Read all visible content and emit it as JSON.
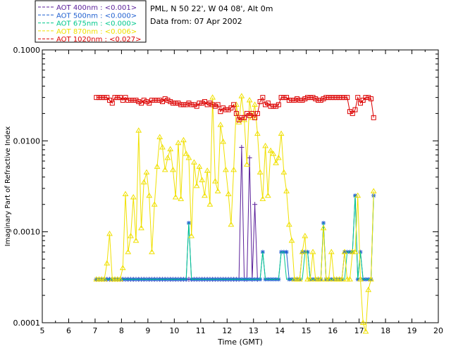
{
  "chart_data": {
    "type": "line",
    "title": "",
    "info_lines": [
      "PML, N 50 22', W 04 08', Alt 0m",
      "Data from: 07 Apr 2002"
    ],
    "xlabel": "Time (GMT)",
    "ylabel": "Imaginary Part of Refractive Index",
    "xlim": [
      5,
      20
    ],
    "ylim": [
      0.0001,
      0.1
    ],
    "yscale": "log",
    "x_ticks": [
      "5",
      "6",
      "7",
      "8",
      "9",
      "10",
      "11",
      "12",
      "13",
      "14",
      "15",
      "16",
      "17",
      "18",
      "19",
      "20"
    ],
    "y_ticks": [
      "0.0001",
      "0.0010",
      "0.0100",
      "0.1000"
    ],
    "legend_position": "top-left",
    "series": [
      {
        "name": "AOT  400nm : <0.001>",
        "color": "#5a1f9a",
        "marker": "plus",
        "x": [
          7.05,
          7.15,
          7.25,
          7.35,
          7.45,
          7.55,
          7.65,
          7.75,
          7.85,
          7.95,
          8.05,
          8.15,
          8.25,
          8.35,
          8.45,
          8.55,
          8.65,
          8.75,
          8.85,
          8.95,
          9.05,
          9.15,
          9.25,
          9.35,
          9.45,
          9.55,
          9.65,
          9.75,
          9.85,
          9.95,
          10.05,
          10.15,
          10.25,
          10.35,
          10.45,
          10.55,
          10.65,
          10.75,
          10.85,
          10.95,
          11.05,
          11.15,
          11.25,
          11.35,
          11.45,
          11.55,
          11.65,
          11.75,
          11.85,
          11.95,
          12.05,
          12.15,
          12.25,
          12.35,
          12.45,
          12.55,
          12.65,
          12.75,
          12.85,
          12.95,
          13.05,
          13.15
        ],
        "y": [
          0.0003,
          0.0003,
          0.0003,
          0.0003,
          0.0003,
          0.0003,
          0.0003,
          0.0003,
          0.0003,
          0.0003,
          0.0003,
          0.0003,
          0.0003,
          0.0003,
          0.0003,
          0.0003,
          0.0003,
          0.0003,
          0.0003,
          0.0003,
          0.0003,
          0.0003,
          0.0003,
          0.0003,
          0.0003,
          0.0003,
          0.0003,
          0.0003,
          0.0003,
          0.0003,
          0.0003,
          0.0003,
          0.0003,
          0.0003,
          0.0003,
          0.0003,
          0.0003,
          0.0003,
          0.0003,
          0.0003,
          0.0003,
          0.0003,
          0.0003,
          0.0003,
          0.0003,
          0.0003,
          0.0003,
          0.0003,
          0.0003,
          0.0003,
          0.0003,
          0.0003,
          0.0003,
          0.0003,
          0.0003,
          0.0085,
          0.0003,
          0.0003,
          0.0065,
          0.0003,
          0.002,
          0.0003
        ]
      },
      {
        "name": "AOT  500nm : <0.000>",
        "color": "#1f5fd0",
        "marker": "asterisk",
        "x": [
          7.05,
          7.15,
          7.25,
          7.35,
          7.45,
          7.55,
          7.65,
          7.75,
          7.85,
          7.95,
          8.05,
          8.15,
          8.25,
          8.35,
          8.45,
          8.55,
          8.65,
          8.75,
          8.85,
          8.95,
          9.05,
          9.15,
          9.25,
          9.35,
          9.45,
          9.55,
          9.65,
          9.75,
          9.85,
          9.95,
          10.05,
          10.15,
          10.25,
          10.35,
          10.45,
          10.55,
          10.65,
          10.75,
          10.85,
          10.95,
          11.05,
          11.15,
          11.25,
          11.35,
          11.45,
          11.55,
          11.65,
          11.75,
          11.85,
          11.95,
          12.05,
          12.15,
          12.25,
          12.35,
          12.45,
          12.55,
          12.65,
          12.75,
          12.85,
          12.95,
          13.05,
          13.15,
          13.25,
          13.35,
          13.45,
          13.55,
          13.65,
          13.75,
          13.85,
          13.95,
          14.05,
          14.15,
          14.25,
          14.35,
          14.45,
          14.55,
          14.65,
          14.75,
          14.85,
          14.95,
          15.05,
          15.15,
          15.25,
          15.35,
          15.45,
          15.55,
          15.65,
          15.75,
          15.85,
          15.95,
          16.05,
          16.15,
          16.25,
          16.35,
          16.45,
          16.55,
          16.65,
          16.75,
          16.85,
          16.95,
          17.05,
          17.15,
          17.25,
          17.35,
          17.45,
          17.55
        ],
        "y": [
          0.0003,
          0.0003,
          0.0003,
          0.0003,
          0.0003,
          0.0003,
          0.0003,
          0.0003,
          0.0003,
          0.0003,
          0.0003,
          0.0003,
          0.0003,
          0.0003,
          0.0003,
          0.0003,
          0.0003,
          0.0003,
          0.0003,
          0.0003,
          0.0003,
          0.0003,
          0.0003,
          0.0003,
          0.0003,
          0.0003,
          0.0003,
          0.0003,
          0.0003,
          0.0003,
          0.0003,
          0.0003,
          0.0003,
          0.0003,
          0.0003,
          0.00125,
          0.0003,
          0.0003,
          0.0003,
          0.0003,
          0.0003,
          0.0003,
          0.0003,
          0.0003,
          0.0003,
          0.0003,
          0.0003,
          0.0003,
          0.0003,
          0.0003,
          0.0003,
          0.0003,
          0.0003,
          0.0003,
          0.0003,
          0.0003,
          0.0003,
          0.0003,
          0.0003,
          0.0003,
          0.0003,
          0.0003,
          0.0003,
          0.0006,
          0.0003,
          0.0003,
          0.0003,
          0.0003,
          0.0003,
          0.0003,
          0.0006,
          0.0006,
          0.0006,
          0.0003,
          0.0003,
          0.0003,
          0.0003,
          0.0003,
          0.0006,
          0.0006,
          0.0006,
          0.0003,
          0.0003,
          0.0003,
          0.0003,
          0.0003,
          0.00125,
          0.0003,
          0.0003,
          0.0003,
          0.0003,
          0.0003,
          0.0003,
          0.0003,
          0.0006,
          0.0006,
          0.0006,
          0.0006,
          0.0025,
          0.0003,
          0.0006,
          0.0003,
          0.0003,
          0.0003,
          0.0003,
          0.0025
        ]
      },
      {
        "name": "AOT  675nm : <0.000>",
        "color": "#00c88c",
        "marker": "none",
        "x": [
          7.05,
          10.45,
          10.55,
          10.65,
          13.25,
          13.35,
          13.45,
          13.95,
          14.05,
          14.15,
          14.25,
          14.85,
          14.95,
          15.05,
          15.15,
          15.55,
          15.65,
          15.75,
          16.45,
          16.55,
          16.65,
          16.75,
          16.85,
          16.95,
          17.05,
          17.15,
          17.25,
          17.35,
          17.45,
          17.55
        ],
        "y": [
          0.0003,
          0.0003,
          0.00125,
          0.0003,
          0.0003,
          0.0006,
          0.0003,
          0.0003,
          0.0006,
          0.0006,
          0.0003,
          0.0003,
          0.0006,
          0.0006,
          0.0003,
          0.0003,
          0.00125,
          0.0003,
          0.0003,
          0.0006,
          0.0006,
          0.0006,
          0.0025,
          0.0003,
          0.0006,
          0.0003,
          0.0003,
          0.0003,
          0.0003,
          0.0025
        ]
      },
      {
        "name": "AOT  870nm : <0.006>",
        "color": "#f0e000",
        "marker": "triangle",
        "x": [
          7.05,
          7.15,
          7.25,
          7.35,
          7.45,
          7.55,
          7.65,
          7.75,
          7.85,
          7.95,
          8.05,
          8.15,
          8.25,
          8.35,
          8.45,
          8.55,
          8.65,
          8.75,
          8.85,
          8.95,
          9.05,
          9.15,
          9.25,
          9.35,
          9.45,
          9.55,
          9.65,
          9.75,
          9.85,
          9.95,
          10.05,
          10.15,
          10.25,
          10.35,
          10.45,
          10.55,
          10.65,
          10.75,
          10.85,
          10.95,
          11.05,
          11.15,
          11.25,
          11.35,
          11.45,
          11.55,
          11.65,
          11.75,
          11.85,
          11.95,
          12.05,
          12.15,
          12.25,
          12.35,
          12.45,
          12.55,
          12.65,
          12.75,
          12.85,
          12.95,
          13.05,
          13.15,
          13.25,
          13.35,
          13.45,
          13.55,
          13.65,
          13.75,
          13.85,
          13.95,
          14.05,
          14.15,
          14.25,
          14.35,
          14.45,
          14.55,
          14.65,
          14.75,
          14.85,
          14.95,
          15.05,
          15.15,
          15.25,
          15.35,
          15.45,
          15.55,
          15.65,
          15.75,
          15.85,
          15.95,
          16.05,
          16.15,
          16.25,
          16.35,
          16.45,
          16.55,
          16.65,
          16.75,
          16.85,
          16.95,
          17.05,
          17.15,
          17.25,
          17.35,
          17.45,
          17.55
        ],
        "y": [
          0.0003,
          0.0003,
          0.0003,
          0.0003,
          0.00045,
          0.00095,
          0.0003,
          0.0003,
          0.0003,
          0.0003,
          0.0004,
          0.0026,
          0.0006,
          0.0009,
          0.0024,
          0.0008,
          0.013,
          0.0011,
          0.0035,
          0.0045,
          0.0025,
          0.0006,
          0.002,
          0.0052,
          0.011,
          0.0085,
          0.0048,
          0.0065,
          0.0081,
          0.0048,
          0.0024,
          0.0095,
          0.0023,
          0.0102,
          0.0072,
          0.0065,
          0.0009,
          0.0058,
          0.0032,
          0.0052,
          0.0037,
          0.0025,
          0.0047,
          0.002,
          0.03,
          0.0036,
          0.0028,
          0.015,
          0.0098,
          0.0048,
          0.0026,
          0.0012,
          0.0048,
          0.025,
          0.016,
          0.031,
          0.017,
          0.0055,
          0.028,
          0.018,
          0.025,
          0.012,
          0.0045,
          0.0023,
          0.0088,
          0.0025,
          0.0078,
          0.0072,
          0.0057,
          0.0065,
          0.012,
          0.0045,
          0.0028,
          0.0012,
          0.0008,
          0.0003,
          0.0003,
          0.0003,
          0.0006,
          0.0009,
          0.0003,
          0.0003,
          0.0006,
          0.0003,
          0.0003,
          0.0003,
          0.0011,
          0.0003,
          0.0003,
          0.0006,
          0.0003,
          0.0003,
          0.0003,
          0.0003,
          0.0006,
          0.0003,
          0.0003,
          0.0006,
          0.0006,
          0.0025,
          0.0003,
          0.0001,
          8e-05,
          0.00023,
          0.0003,
          0.0028
        ]
      },
      {
        "name": "AOT 1020nm : <0.027>",
        "color": "#dc0000",
        "marker": "square",
        "x": [
          7.05,
          7.15,
          7.25,
          7.35,
          7.45,
          7.55,
          7.65,
          7.75,
          7.85,
          7.95,
          8.05,
          8.15,
          8.25,
          8.35,
          8.45,
          8.55,
          8.65,
          8.75,
          8.85,
          8.95,
          9.05,
          9.15,
          9.25,
          9.35,
          9.45,
          9.55,
          9.65,
          9.75,
          9.85,
          9.95,
          10.05,
          10.15,
          10.25,
          10.35,
          10.45,
          10.55,
          10.65,
          10.75,
          10.85,
          10.95,
          11.05,
          11.15,
          11.25,
          11.35,
          11.45,
          11.55,
          11.65,
          11.75,
          11.85,
          11.95,
          12.05,
          12.15,
          12.25,
          12.35,
          12.45,
          12.55,
          12.65,
          12.75,
          12.85,
          12.95,
          13.05,
          13.15,
          13.25,
          13.35,
          13.45,
          13.55,
          13.65,
          13.75,
          13.85,
          13.95,
          14.05,
          14.15,
          14.25,
          14.35,
          14.45,
          14.55,
          14.65,
          14.75,
          14.85,
          14.95,
          15.05,
          15.15,
          15.25,
          15.35,
          15.45,
          15.55,
          15.65,
          15.75,
          15.85,
          15.95,
          16.05,
          16.15,
          16.25,
          16.35,
          16.45,
          16.55,
          16.65,
          16.75,
          16.85,
          16.95,
          17.05,
          17.15,
          17.25,
          17.35,
          17.45,
          17.55
        ],
        "y": [
          0.03,
          0.03,
          0.03,
          0.03,
          0.03,
          0.028,
          0.026,
          0.03,
          0.03,
          0.03,
          0.028,
          0.03,
          0.028,
          0.028,
          0.028,
          0.028,
          0.027,
          0.026,
          0.028,
          0.027,
          0.026,
          0.028,
          0.028,
          0.028,
          0.028,
          0.027,
          0.029,
          0.028,
          0.027,
          0.026,
          0.026,
          0.026,
          0.025,
          0.025,
          0.025,
          0.026,
          0.025,
          0.025,
          0.024,
          0.026,
          0.026,
          0.027,
          0.025,
          0.026,
          0.025,
          0.024,
          0.025,
          0.021,
          0.023,
          0.022,
          0.022,
          0.023,
          0.025,
          0.02,
          0.017,
          0.018,
          0.018,
          0.02,
          0.019,
          0.02,
          0.018,
          0.02,
          0.027,
          0.03,
          0.025,
          0.026,
          0.024,
          0.024,
          0.024,
          0.025,
          0.03,
          0.03,
          0.03,
          0.028,
          0.028,
          0.028,
          0.029,
          0.028,
          0.028,
          0.029,
          0.03,
          0.03,
          0.03,
          0.029,
          0.028,
          0.028,
          0.029,
          0.03,
          0.03,
          0.03,
          0.03,
          0.03,
          0.03,
          0.03,
          0.03,
          0.03,
          0.021,
          0.02,
          0.022,
          0.03,
          0.026,
          0.028,
          0.03,
          0.03,
          0.029,
          0.018
        ]
      }
    ]
  }
}
